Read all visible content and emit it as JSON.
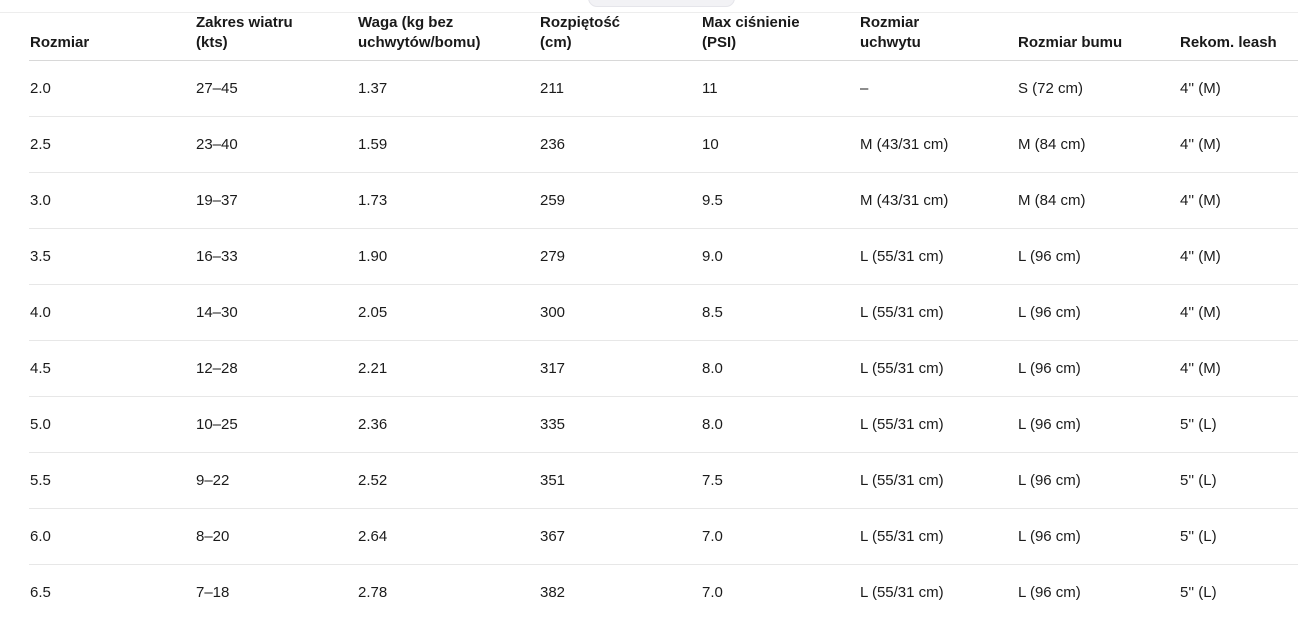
{
  "page": {
    "background": "#ffffff",
    "text_color": "#1a1a1a",
    "header_separator_color": "#d8d8d8",
    "row_separator_color": "#e7e7e7",
    "top_border_color": "#ededed",
    "top_overlay_color": "#f2f2f5"
  },
  "table": {
    "columns": [
      {
        "id": "size",
        "label": "Rozmiar"
      },
      {
        "id": "wind-range",
        "label": "Zakres wiatru\n(kts)"
      },
      {
        "id": "weight",
        "label": "Waga (kg bez\nuchwytów/bomu)"
      },
      {
        "id": "span",
        "label": "Rozpiętość\n(cm)"
      },
      {
        "id": "max-pressure",
        "label": "Max ciśnienie\n(PSI)"
      },
      {
        "id": "handle-size",
        "label": "Rozmiar\nuchwytu"
      },
      {
        "id": "boom-size",
        "label": "Rozmiar bumu"
      },
      {
        "id": "leash",
        "label": "Rekom. leash"
      }
    ],
    "rows": [
      [
        "2.0",
        "27–45",
        "1.37",
        "211",
        "11",
        "–",
        "S (72 cm)",
        "4'' (M)"
      ],
      [
        "2.5",
        "23–40",
        "1.59",
        "236",
        "10",
        "M (43/31 cm)",
        "M (84 cm)",
        "4'' (M)"
      ],
      [
        "3.0",
        "19–37",
        "1.73",
        "259",
        "9.5",
        "M (43/31 cm)",
        "M (84 cm)",
        "4'' (M)"
      ],
      [
        "3.5",
        "16–33",
        "1.90",
        "279",
        "9.0",
        "L (55/31 cm)",
        "L (96 cm)",
        "4'' (M)"
      ],
      [
        "4.0",
        "14–30",
        "2.05",
        "300",
        "8.5",
        "L (55/31 cm)",
        "L (96 cm)",
        "4'' (M)"
      ],
      [
        "4.5",
        "12–28",
        "2.21",
        "317",
        "8.0",
        "L (55/31 cm)",
        "L (96 cm)",
        "4'' (M)"
      ],
      [
        "5.0",
        "10–25",
        "2.36",
        "335",
        "8.0",
        "L (55/31 cm)",
        "L (96 cm)",
        "5'' (L)"
      ],
      [
        "5.5",
        "9–22",
        "2.52",
        "351",
        "7.5",
        "L (55/31 cm)",
        "L (96 cm)",
        "5'' (L)"
      ],
      [
        "6.0",
        "8–20",
        "2.64",
        "367",
        "7.0",
        "L (55/31 cm)",
        "L (96 cm)",
        "5'' (L)"
      ],
      [
        "6.5",
        "7–18",
        "2.78",
        "382",
        "7.0",
        "L (55/31 cm)",
        "L (96 cm)",
        "5'' (L)"
      ]
    ]
  },
  "chart_data": {
    "type": "table",
    "title": "",
    "columns": [
      "Rozmiar",
      "Zakres wiatru (kts)",
      "Waga (kg bez uchwytów/bomu)",
      "Rozpiętość (cm)",
      "Max ciśnienie (PSI)",
      "Rozmiar uchwytu",
      "Rozmiar bumu",
      "Rekom. leash"
    ],
    "rows": [
      [
        "2.0",
        "27–45",
        "1.37",
        "211",
        "11",
        "–",
        "S (72 cm)",
        "4'' (M)"
      ],
      [
        "2.5",
        "23–40",
        "1.59",
        "236",
        "10",
        "M (43/31 cm)",
        "M (84 cm)",
        "4'' (M)"
      ],
      [
        "3.0",
        "19–37",
        "1.73",
        "259",
        "9.5",
        "M (43/31 cm)",
        "M (84 cm)",
        "4'' (M)"
      ],
      [
        "3.5",
        "16–33",
        "1.90",
        "279",
        "9.0",
        "L (55/31 cm)",
        "L (96 cm)",
        "4'' (M)"
      ],
      [
        "4.0",
        "14–30",
        "2.05",
        "300",
        "8.5",
        "L (55/31 cm)",
        "L (96 cm)",
        "4'' (M)"
      ],
      [
        "4.5",
        "12–28",
        "2.21",
        "317",
        "8.0",
        "L (55/31 cm)",
        "L (96 cm)",
        "4'' (M)"
      ],
      [
        "5.0",
        "10–25",
        "2.36",
        "335",
        "8.0",
        "L (55/31 cm)",
        "L (96 cm)",
        "5'' (L)"
      ],
      [
        "5.5",
        "9–22",
        "2.52",
        "351",
        "7.5",
        "L (55/31 cm)",
        "L (96 cm)",
        "5'' (L)"
      ],
      [
        "6.0",
        "8–20",
        "2.64",
        "367",
        "7.0",
        "L (55/31 cm)",
        "L (96 cm)",
        "5'' (L)"
      ],
      [
        "6.5",
        "7–18",
        "2.78",
        "382",
        "7.0",
        "L (55/31 cm)",
        "L (96 cm)",
        "5'' (L)"
      ]
    ]
  }
}
